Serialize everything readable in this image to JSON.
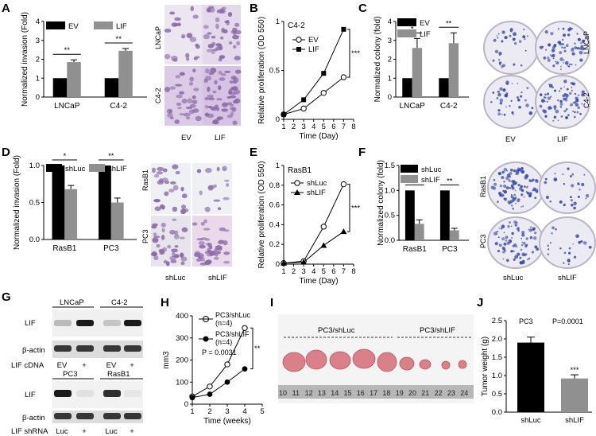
{
  "colors": {
    "black_bar": "#000000",
    "gray_bar": "#909090",
    "blot_dark": "#1a1a1a",
    "stain_purple": "#8a6aa6",
    "stain_bg": "#e6dcec",
    "colony_blue": "#3d4fa8",
    "tumor_pink": "#d98088",
    "ruler_gray": "#9a9a9a"
  },
  "panels": {
    "A": {
      "letter": "A"
    },
    "B": {
      "letter": "B"
    },
    "C": {
      "letter": "C"
    },
    "D": {
      "letter": "D"
    },
    "E": {
      "letter": "E"
    },
    "F": {
      "letter": "F"
    },
    "G": {
      "letter": "G"
    },
    "H": {
      "letter": "H"
    },
    "I": {
      "letter": "I"
    },
    "J": {
      "letter": "J"
    }
  },
  "chart_data": [
    {
      "panel": "A",
      "type": "bar",
      "ylabel": "Normalized invasion (Fold)",
      "ylim": [
        0,
        4
      ],
      "yticks": [
        "0",
        "1",
        "2",
        "3",
        "4"
      ],
      "categories": [
        "LNCaP",
        "C4-2"
      ],
      "series": [
        {
          "name": "EV",
          "values": [
            1.0,
            1.0
          ]
        },
        {
          "name": "LIF",
          "values": [
            1.85,
            2.45
          ]
        }
      ],
      "errors": [
        [
          0,
          0
        ],
        [
          0.12,
          0.12
        ]
      ],
      "significance": [
        "**",
        "**"
      ]
    },
    {
      "panel": "B",
      "type": "line",
      "title": "C4-2",
      "xlabel": "Time (Day)",
      "ylabel": "Relative proliferation (OD 550)",
      "xlim": [
        1,
        8
      ],
      "ylim": [
        0,
        1.0
      ],
      "xticks": [
        "1",
        "2",
        "3",
        "4",
        "5",
        "6",
        "7",
        "8"
      ],
      "yticks": [
        "0",
        "0.5",
        "1"
      ],
      "x": [
        1,
        3,
        5,
        7
      ],
      "series": [
        {
          "name": "EV",
          "values": [
            0.05,
            0.11,
            0.27,
            0.43
          ]
        },
        {
          "name": "LIF",
          "values": [
            0.05,
            0.2,
            0.47,
            0.92
          ]
        }
      ],
      "significance": "***"
    },
    {
      "panel": "C",
      "type": "bar",
      "ylabel": "Normalized colony (fold)",
      "ylim": [
        0,
        4
      ],
      "yticks": [
        "0",
        "1",
        "2",
        "3",
        "4"
      ],
      "categories": [
        "LNCaP",
        "C4-2"
      ],
      "series": [
        {
          "name": "EV",
          "values": [
            1.0,
            1.0
          ]
        },
        {
          "name": "LIF",
          "values": [
            2.6,
            2.85
          ]
        }
      ],
      "errors": [
        [
          0,
          0
        ],
        [
          0.5,
          0.55
        ]
      ],
      "significance": [
        "*",
        "**"
      ]
    },
    {
      "panel": "D",
      "type": "bar",
      "ylabel": "Normalized invasion (Fold)",
      "ylim": [
        0,
        1.0
      ],
      "yticks": [
        "0.0",
        "0.5",
        "1.0"
      ],
      "categories": [
        "RasB1",
        "PC3"
      ],
      "series": [
        {
          "name": "shLuc",
          "values": [
            1.0,
            1.0
          ]
        },
        {
          "name": "shLIF",
          "values": [
            0.68,
            0.5
          ]
        }
      ],
      "errors": [
        [
          0,
          0
        ],
        [
          0.05,
          0.06
        ]
      ],
      "significance": [
        "*",
        "**"
      ]
    },
    {
      "panel": "E",
      "type": "line",
      "title": "RasB1",
      "xlabel": "Time (Day)",
      "ylabel": "Relative proliferation (OD 550)",
      "xlim": [
        1,
        8
      ],
      "ylim": [
        0,
        1.0
      ],
      "xticks": [
        "1",
        "2",
        "3",
        "4",
        "5",
        "6",
        "7",
        "8"
      ],
      "yticks": [
        "0",
        "0.2",
        "0.4",
        "0.6",
        "0.8",
        "1"
      ],
      "x": [
        1,
        3,
        5,
        7
      ],
      "series": [
        {
          "name": "shLuc",
          "values": [
            0.01,
            0.03,
            0.38,
            0.81
          ]
        },
        {
          "name": "shLIF",
          "values": [
            0.01,
            0.02,
            0.19,
            0.33
          ]
        }
      ],
      "significance": "***"
    },
    {
      "panel": "F",
      "type": "bar",
      "ylabel": "Normalized colony (fold)",
      "ylim": [
        0,
        1.5
      ],
      "yticks": [
        "0.0",
        "0.5",
        "1.0",
        "1.5"
      ],
      "categories": [
        "RasB1",
        "PC3"
      ],
      "series": [
        {
          "name": "shLuc",
          "values": [
            1.0,
            1.0
          ]
        },
        {
          "name": "shLIF",
          "values": [
            0.33,
            0.2
          ]
        }
      ],
      "errors": [
        [
          0,
          0
        ],
        [
          0.08,
          0.04
        ]
      ],
      "significance": [
        "**",
        "**"
      ]
    },
    {
      "panel": "H",
      "type": "line",
      "xlabel": "Time (weeks)",
      "ylabel": "mm3",
      "xlim": [
        1,
        5
      ],
      "ylim": [
        0,
        400
      ],
      "xticks": [
        "1",
        "2",
        "3",
        "4",
        "5"
      ],
      "yticks": [
        "0",
        "100",
        "200",
        "300",
        "400"
      ],
      "x": [
        1,
        2,
        3,
        4
      ],
      "series": [
        {
          "name": "PC3/shLuc",
          "values": [
            35,
            80,
            180,
            345
          ]
        },
        {
          "name": "PC3/shLIF",
          "values": [
            30,
            45,
            100,
            160
          ]
        }
      ],
      "significance": "**"
    },
    {
      "panel": "J",
      "type": "bar",
      "ylabel": "Tumor weight (g)",
      "ylim": [
        0,
        2.5
      ],
      "yticks": [
        "0.0",
        "0.5",
        "1.0",
        "1.5",
        "2.0",
        "2.5"
      ],
      "categories": [
        "shLuc",
        "shLIF"
      ],
      "values": [
        1.9,
        0.92
      ],
      "errors": [
        0.15,
        0.1
      ],
      "significance": [
        "",
        "***"
      ]
    }
  ],
  "text": {
    "A_leg1": "EV",
    "A_leg2": "LIF",
    "A_img_row1": "LNCaP",
    "A_img_row2": "C4-2",
    "A_img_col1": "EV",
    "A_img_col2": "LIF",
    "B_n_ev": "EV",
    "B_n_lif": "LIF",
    "C_leg1": "EV",
    "C_leg2": "LIF",
    "C_img_row1": "LNCaP",
    "C_img_row2": "C4-2",
    "C_img_col1": "EV",
    "C_img_col2": "LIF",
    "D_leg1": "shLuc",
    "D_leg2": "shLIF",
    "D_img_row1": "RasB1",
    "D_img_row2": "PC3",
    "D_img_col1": "shLuc",
    "D_img_col2": "shLIF",
    "F_leg1": "shLuc",
    "F_leg2": "shLIF",
    "F_img_row1": "RasB1",
    "F_img_row2": "PC3",
    "F_img_col1": "shLuc",
    "F_img_col2": "shLIF",
    "G_top_lane1": "LNCaP",
    "G_top_lane2": "C4-2",
    "G_row_lif1": "LIF",
    "G_row_actin1": "β-actin",
    "G_row_cdna": "LIF cDNA",
    "G_cdna_lanes": [
      "EV",
      "+",
      "EV",
      "+"
    ],
    "G_bot_lane1": "PC3",
    "G_bot_lane2": "RasB1",
    "G_row_lif2": "LIF",
    "G_row_actin2": "β-actin",
    "G_row_shrna": "LIF shRNA",
    "G_shrna_lanes": [
      "Luc",
      "+",
      "Luc",
      "+"
    ],
    "H_leg1_line1": "PC3/shLuc",
    "H_leg1_line2": "(n=4)",
    "H_leg2_line1": "PC3/shLIF",
    "H_leg2_line2": "(n=4)",
    "H_pvalue": "P = 0.0031",
    "I_label1": "PC3/shLuc",
    "I_label2": "PC3/shLIF",
    "I_ruler": [
      "10",
      "11",
      "12",
      "13",
      "14",
      "15",
      "16",
      "17",
      "18",
      "19",
      "20",
      "21",
      "22",
      "23",
      "24"
    ],
    "J_cell": "PC3",
    "J_pvalue": "P=0.0001"
  }
}
